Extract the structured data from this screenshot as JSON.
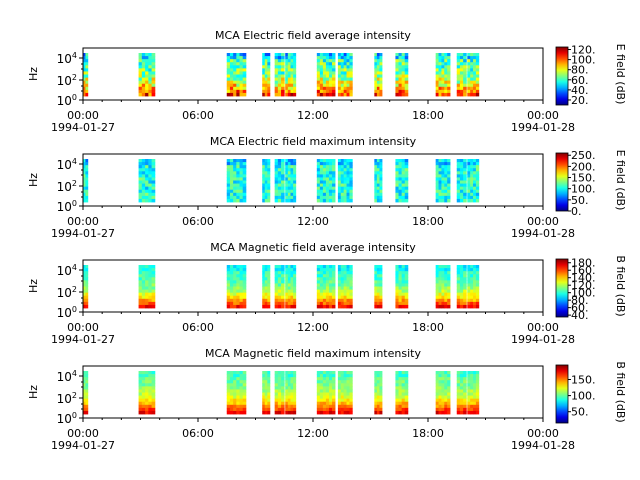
{
  "chart_data": [
    {
      "type": "heatmap",
      "title": "MCA  Electric field average intensity",
      "ylabel": "Hz",
      "colorbar_label": "E field (dB)",
      "colorbar_ticks": [
        "120.",
        "100.",
        "80.",
        "60.",
        "40.",
        "20."
      ],
      "colorbar_range": [
        10,
        125
      ],
      "x_tick_labels": [
        "00:00",
        "06:00",
        "12:00",
        "18:00",
        "00:00"
      ],
      "date_labels": [
        "1994-01-27",
        "1994-01-28"
      ],
      "y_tick_labels": [
        "10^4",
        "10^2",
        "10^0"
      ],
      "xlim_hours": [
        0,
        24
      ],
      "segments_hours": [
        [
          0.0,
          0.25
        ],
        [
          2.9,
          3.75
        ],
        [
          7.5,
          8.5
        ],
        [
          9.35,
          9.75
        ],
        [
          10.0,
          10.5
        ],
        [
          10.55,
          11.1
        ],
        [
          12.2,
          13.15
        ],
        [
          13.3,
          14.05
        ],
        [
          15.2,
          15.6
        ],
        [
          16.3,
          16.95
        ],
        [
          18.4,
          19.15
        ],
        [
          19.5,
          20.0
        ],
        [
          20.05,
          20.65
        ]
      ],
      "value_model": {
        "base": 60,
        "low_freq_boost": 45,
        "variability": 18
      }
    },
    {
      "type": "heatmap",
      "title": "MCA  Electric field maximum intensity",
      "ylabel": "Hz",
      "colorbar_label": "E field (dB)",
      "colorbar_ticks": [
        "250.",
        "200.",
        "150.",
        "100.",
        "50.",
        "0."
      ],
      "colorbar_range": [
        0,
        260
      ],
      "x_tick_labels": [
        "00:00",
        "06:00",
        "12:00",
        "18:00",
        "00:00"
      ],
      "date_labels": [
        "1994-01-27",
        "1994-01-28"
      ],
      "y_tick_labels": [
        "10^4",
        "10^2",
        "10^0"
      ],
      "xlim_hours": [
        0,
        24
      ],
      "segments_hours": [
        [
          0.0,
          0.25
        ],
        [
          2.9,
          3.75
        ],
        [
          7.5,
          8.5
        ],
        [
          9.35,
          9.75
        ],
        [
          10.0,
          10.5
        ],
        [
          10.55,
          11.1
        ],
        [
          12.2,
          13.15
        ],
        [
          13.3,
          14.05
        ],
        [
          15.2,
          15.6
        ],
        [
          16.3,
          16.95
        ],
        [
          18.4,
          19.15
        ],
        [
          19.5,
          20.0
        ],
        [
          20.05,
          20.65
        ]
      ],
      "value_model": {
        "base": 105,
        "low_freq_boost": 0,
        "variability": 30
      }
    },
    {
      "type": "heatmap",
      "title": "MCA  Magnetic field average intensity",
      "ylabel": "Hz",
      "colorbar_label": "B field (dB)",
      "colorbar_ticks": [
        "180.",
        "160.",
        "140.",
        "120.",
        "100.",
        "80.",
        "60.",
        "40."
      ],
      "colorbar_range": [
        35,
        190
      ],
      "x_tick_labels": [
        "00:00",
        "06:00",
        "12:00",
        "18:00",
        "00:00"
      ],
      "date_labels": [
        "1994-01-27",
        "1994-01-28"
      ],
      "y_tick_labels": [
        "10^4",
        "10^2",
        "10^0"
      ],
      "xlim_hours": [
        0,
        24
      ],
      "segments_hours": [
        [
          0.0,
          0.25
        ],
        [
          2.9,
          3.75
        ],
        [
          7.5,
          8.5
        ],
        [
          9.35,
          9.75
        ],
        [
          10.0,
          10.5
        ],
        [
          10.55,
          11.1
        ],
        [
          12.2,
          13.15
        ],
        [
          13.3,
          14.05
        ],
        [
          15.2,
          15.6
        ],
        [
          16.3,
          16.95
        ],
        [
          18.4,
          19.15
        ],
        [
          19.5,
          20.0
        ],
        [
          20.05,
          20.65
        ]
      ],
      "value_model": {
        "base": 100,
        "low_freq_boost": 70,
        "variability": 10
      }
    },
    {
      "type": "heatmap",
      "title": "MCA  Magnetic field maximum intensity",
      "ylabel": "Hz",
      "colorbar_label": "B field (dB)",
      "colorbar_ticks": [
        "150.",
        "100.",
        "50."
      ],
      "colorbar_range": [
        15,
        195
      ],
      "x_tick_labels": [
        "00:00",
        "06:00",
        "12:00",
        "18:00",
        "00:00"
      ],
      "date_labels": [
        "1994-01-27",
        "1994-01-28"
      ],
      "y_tick_labels": [
        "10^4",
        "10^2",
        "10^0"
      ],
      "xlim_hours": [
        0,
        24
      ],
      "segments_hours": [
        [
          0.0,
          0.25
        ],
        [
          2.9,
          3.75
        ],
        [
          7.5,
          8.5
        ],
        [
          9.35,
          9.75
        ],
        [
          10.0,
          10.5
        ],
        [
          10.55,
          11.1
        ],
        [
          12.2,
          13.15
        ],
        [
          13.3,
          14.05
        ],
        [
          15.2,
          15.6
        ],
        [
          16.3,
          16.95
        ],
        [
          18.4,
          19.15
        ],
        [
          19.5,
          20.0
        ],
        [
          20.05,
          20.65
        ]
      ],
      "value_model": {
        "base": 100,
        "low_freq_boost": 75,
        "variability": 10
      }
    }
  ]
}
